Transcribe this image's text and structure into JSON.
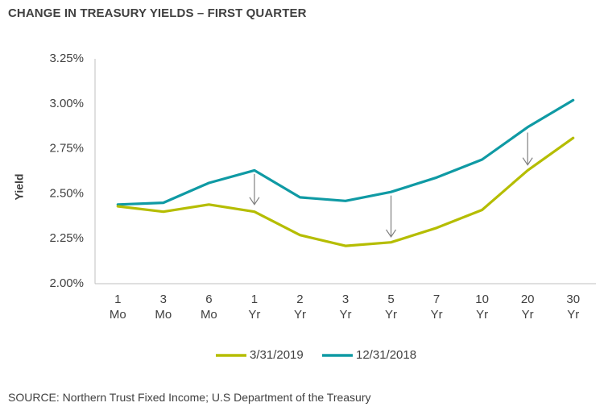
{
  "chart_data": {
    "type": "line",
    "title": "CHANGE IN TREASURY YIELDS – FIRST QUARTER",
    "ylabel": "Yield",
    "xlabel": "",
    "categories": [
      [
        "1",
        "Mo"
      ],
      [
        "3",
        "Mo"
      ],
      [
        "6",
        "Mo"
      ],
      [
        "1",
        "Yr"
      ],
      [
        "2",
        "Yr"
      ],
      [
        "3",
        "Yr"
      ],
      [
        "5",
        "Yr"
      ],
      [
        "7",
        "Yr"
      ],
      [
        "10",
        "Yr"
      ],
      [
        "20",
        "Yr"
      ],
      [
        "30",
        "Yr"
      ]
    ],
    "ylim": [
      2.0,
      3.25
    ],
    "yticks": [
      2.0,
      2.25,
      2.5,
      2.75,
      3.0,
      3.25
    ],
    "ytick_labels": [
      "2.00%",
      "2.25%",
      "2.50%",
      "2.75%",
      "3.00%",
      "3.25%"
    ],
    "series": [
      {
        "name": "3/31/2019",
        "color": "#b5bd00",
        "values": [
          2.43,
          2.4,
          2.44,
          2.4,
          2.27,
          2.21,
          2.23,
          2.31,
          2.41,
          2.63,
          2.81
        ]
      },
      {
        "name": "12/31/2018",
        "color": "#0f9aa4",
        "values": [
          2.44,
          2.45,
          2.56,
          2.63,
          2.48,
          2.46,
          2.51,
          2.59,
          2.69,
          2.87,
          3.02
        ]
      }
    ],
    "annotations": [
      {
        "type": "arrow",
        "category_index": 3,
        "from": 2.61,
        "to": 2.44
      },
      {
        "type": "arrow",
        "category_index": 6,
        "from": 2.49,
        "to": 2.26
      },
      {
        "type": "arrow",
        "category_index": 9,
        "from": 2.84,
        "to": 2.66
      }
    ],
    "grid": false,
    "legend_position": "bottom"
  },
  "source_text": "SOURCE: Northern Trust Fixed Income; U.S Department of the Treasury"
}
